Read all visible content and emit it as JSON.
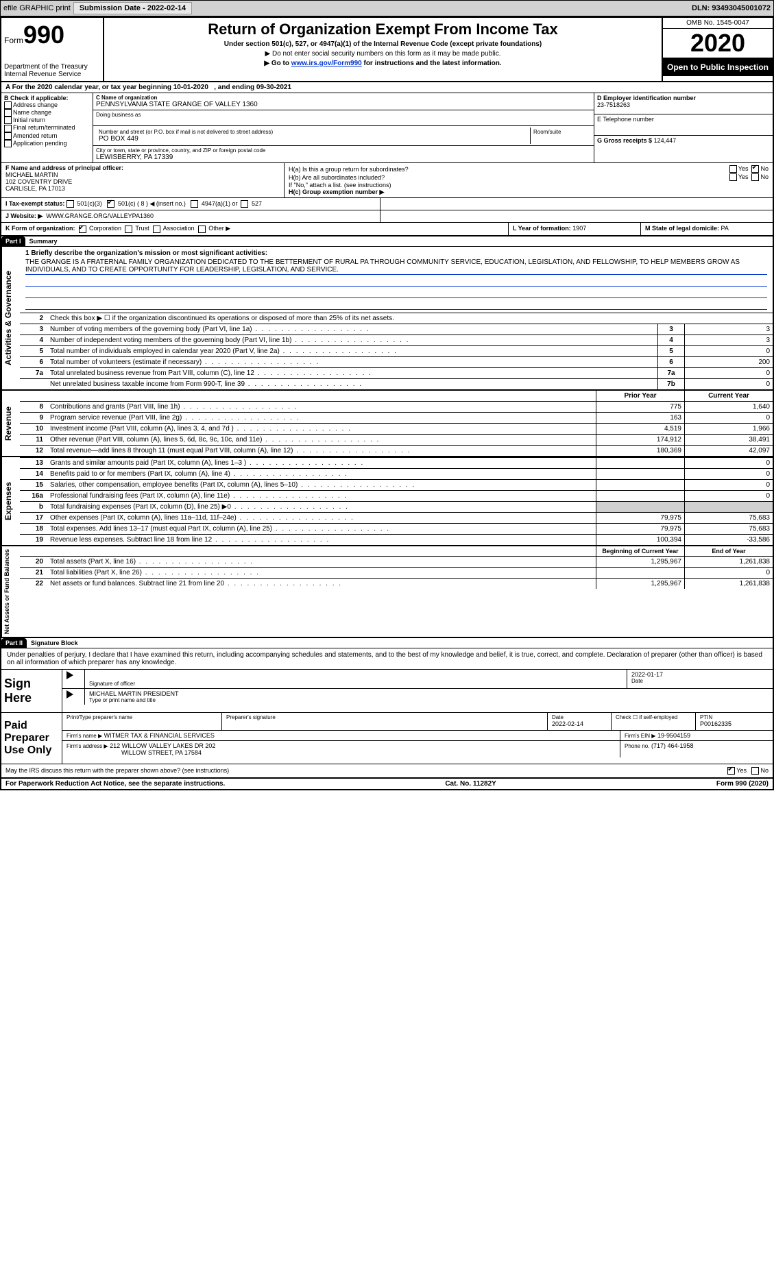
{
  "topbar": {
    "efile": "efile GRAPHIC print",
    "subdate_lbl": "Submission Date - 2022-02-14",
    "dln": "DLN: 93493045001072"
  },
  "header": {
    "form_word": "Form",
    "form_num": "990",
    "dept": "Department of the Treasury\nInternal Revenue Service",
    "title": "Return of Organization Exempt From Income Tax",
    "sub1": "Under section 501(c), 527, or 4947(a)(1) of the Internal Revenue Code (except private foundations)",
    "sub2": "▶ Do not enter social security numbers on this form as it may be made public.",
    "sub3_pre": "▶ Go to ",
    "sub3_link": "www.irs.gov/Form990",
    "sub3_post": " for instructions and the latest information.",
    "omb": "OMB No. 1545-0047",
    "year": "2020",
    "openpub": "Open to Public Inspection"
  },
  "period": {
    "text_a": "A For the 2020 calendar year, or tax year beginning 10-01-2020",
    "text_b": ", and ending 09-30-2021"
  },
  "blockB": {
    "hdr": "B Check if applicable:",
    "items": [
      "Address change",
      "Name change",
      "Initial return",
      "Final return/terminated",
      "Amended return",
      "Application pending"
    ]
  },
  "blockC": {
    "name_lbl": "C Name of organization",
    "name": "PENNSYLVANIA STATE GRANGE OF VALLEY 1360",
    "dba_lbl": "Doing business as",
    "dba": "",
    "addr_lbl": "Number and street (or P.O. box if mail is not delivered to street address)",
    "room_lbl": "Room/suite",
    "addr": "PO BOX 449",
    "city_lbl": "City or town, state or province, country, and ZIP or foreign postal code",
    "city": "LEWISBERRY, PA  17339"
  },
  "blockD": {
    "lbl": "D Employer identification number",
    "val": "23-7518263"
  },
  "blockE": {
    "lbl": "E Telephone number",
    "val": ""
  },
  "blockG": {
    "lbl": "G Gross receipts $",
    "val": "124,447"
  },
  "blockF": {
    "lbl": "F Name and address of principal officer:",
    "name": "MICHAEL MARTIN",
    "addr1": "102 COVENTRY DRIVE",
    "addr2": "CARLISLE, PA  17013"
  },
  "blockH": {
    "a": "H(a)  Is this a group return for subordinates?",
    "b": "H(b)  Are all subordinates included?",
    "bnote": "If \"No,\" attach a list. (see instructions)",
    "c": "H(c)  Group exemption number ▶",
    "yes": "Yes",
    "no": "No"
  },
  "rowI": {
    "lbl": "I   Tax-exempt status:",
    "o1": "501(c)(3)",
    "o2": "501(c) ( 8 ) ◀ (insert no.)",
    "o3": "4947(a)(1) or",
    "o4": "527"
  },
  "rowJ": {
    "lbl": "J   Website: ▶",
    "val": "WWW.GRANGE.ORG/VALLEYPA1360"
  },
  "rowK": {
    "lbl": "K Form of organization:",
    "o1": "Corporation",
    "o2": "Trust",
    "o3": "Association",
    "o4": "Other ▶"
  },
  "rowL": {
    "lbl": "L Year of formation:",
    "val": "1907"
  },
  "rowM": {
    "lbl": "M State of legal domicile:",
    "val": "PA"
  },
  "parts": {
    "p1": "Part I",
    "p1t": "Summary",
    "p2": "Part II",
    "p2t": "Signature Block"
  },
  "mission": {
    "q": "1  Briefly describe the organization's mission or most significant activities:",
    "text": "THE GRANGE IS A FRATERNAL FAMILY ORGANIZATION DEDICATED TO THE BETTERMENT OF RURAL PA THROUGH COMMUNITY SERVICE, EDUCATION, LEGISLATION, AND FELLOWSHIP, TO HELP MEMBERS GROW AS INDIVIDUALS, AND TO CREATE OPPORTUNITY FOR LEADERSHIP, LEGISLATION, AND SERVICE."
  },
  "gov_lines": [
    {
      "n": "2",
      "t": "Check this box ▶ ☐ if the organization discontinued its operations or disposed of more than 25% of its net assets.",
      "num": "",
      "v": ""
    },
    {
      "n": "3",
      "t": "Number of voting members of the governing body (Part VI, line 1a)",
      "num": "3",
      "v": "3"
    },
    {
      "n": "4",
      "t": "Number of independent voting members of the governing body (Part VI, line 1b)",
      "num": "4",
      "v": "3"
    },
    {
      "n": "5",
      "t": "Total number of individuals employed in calendar year 2020 (Part V, line 2a)",
      "num": "5",
      "v": "0"
    },
    {
      "n": "6",
      "t": "Total number of volunteers (estimate if necessary)",
      "num": "6",
      "v": "200"
    },
    {
      "n": "7a",
      "t": "Total unrelated business revenue from Part VIII, column (C), line 12",
      "num": "7a",
      "v": "0"
    },
    {
      "n": "",
      "t": "Net unrelated business taxable income from Form 990-T, line 39",
      "num": "7b",
      "v": "0"
    }
  ],
  "col_hdr": {
    "prior": "Prior Year",
    "current": "Current Year",
    "boy": "Beginning of Current Year",
    "eoy": "End of Year"
  },
  "revenue": [
    {
      "n": "8",
      "t": "Contributions and grants (Part VIII, line 1h)",
      "p": "775",
      "c": "1,640"
    },
    {
      "n": "9",
      "t": "Program service revenue (Part VIII, line 2g)",
      "p": "163",
      "c": "0"
    },
    {
      "n": "10",
      "t": "Investment income (Part VIII, column (A), lines 3, 4, and 7d )",
      "p": "4,519",
      "c": "1,966"
    },
    {
      "n": "11",
      "t": "Other revenue (Part VIII, column (A), lines 5, 6d, 8c, 9c, 10c, and 11e)",
      "p": "174,912",
      "c": "38,491"
    },
    {
      "n": "12",
      "t": "Total revenue—add lines 8 through 11 (must equal Part VIII, column (A), line 12)",
      "p": "180,369",
      "c": "42,097"
    }
  ],
  "expenses": [
    {
      "n": "13",
      "t": "Grants and similar amounts paid (Part IX, column (A), lines 1–3 )",
      "p": "",
      "c": "0"
    },
    {
      "n": "14",
      "t": "Benefits paid to or for members (Part IX, column (A), line 4)",
      "p": "",
      "c": "0"
    },
    {
      "n": "15",
      "t": "Salaries, other compensation, employee benefits (Part IX, column (A), lines 5–10)",
      "p": "",
      "c": "0"
    },
    {
      "n": "16a",
      "t": "Professional fundraising fees (Part IX, column (A), line 11e)",
      "p": "",
      "c": "0"
    },
    {
      "n": "b",
      "t": "Total fundraising expenses (Part IX, column (D), line 25) ▶0",
      "p": "shade",
      "c": "shade"
    },
    {
      "n": "17",
      "t": "Other expenses (Part IX, column (A), lines 11a–11d, 11f–24e)",
      "p": "79,975",
      "c": "75,683"
    },
    {
      "n": "18",
      "t": "Total expenses. Add lines 13–17 (must equal Part IX, column (A), line 25)",
      "p": "79,975",
      "c": "75,683"
    },
    {
      "n": "19",
      "t": "Revenue less expenses. Subtract line 18 from line 12",
      "p": "100,394",
      "c": "-33,586"
    }
  ],
  "netassets": [
    {
      "n": "20",
      "t": "Total assets (Part X, line 16)",
      "p": "1,295,967",
      "c": "1,261,838"
    },
    {
      "n": "21",
      "t": "Total liabilities (Part X, line 26)",
      "p": "",
      "c": "0"
    },
    {
      "n": "22",
      "t": "Net assets or fund balances. Subtract line 21 from line 20",
      "p": "1,295,967",
      "c": "1,261,838"
    }
  ],
  "vlabels": {
    "gov": "Activities & Governance",
    "rev": "Revenue",
    "exp": "Expenses",
    "net": "Net Assets or Fund Balances"
  },
  "sigblock": {
    "perjury": "Under penalties of perjury, I declare that I have examined this return, including accompanying schedules and statements, and to the best of my knowledge and belief, it is true, correct, and complete. Declaration of preparer (other than officer) is based on all information of which preparer has any knowledge.",
    "sign_here": "Sign Here",
    "sig_officer_lbl": "Signature of officer",
    "date_lbl": "Date",
    "sig_date": "2022-01-17",
    "name_title": "MICHAEL MARTIN  PRESIDENT",
    "name_title_lbl": "Type or print name and title",
    "paid": "Paid Preparer Use Only",
    "pt_name_lbl": "Print/Type preparer's name",
    "pt_sig_lbl": "Preparer's signature",
    "pt_date_lbl": "Date",
    "pt_date": "2022-02-14",
    "pt_check_lbl": "Check ☐ if self-employed",
    "ptin_lbl": "PTIN",
    "ptin": "P00162335",
    "firm_name_lbl": "Firm's name    ▶",
    "firm_name": "WITMER TAX & FINANCIAL SERVICES",
    "firm_ein_lbl": "Firm's EIN ▶",
    "firm_ein": "19-9504159",
    "firm_addr_lbl": "Firm's address ▶",
    "firm_addr1": "212 WILLOW VALLEY LAKES DR 202",
    "firm_addr2": "WILLOW STREET, PA  17584",
    "phone_lbl": "Phone no.",
    "phone": "(717) 464-1958",
    "discuss": "May the IRS discuss this return with the preparer shown above? (see instructions)",
    "yes": "Yes",
    "no": "No"
  },
  "footer": {
    "pra": "For Paperwork Reduction Act Notice, see the separate instructions.",
    "cat": "Cat. No. 11282Y",
    "form": "Form 990 (2020)"
  }
}
